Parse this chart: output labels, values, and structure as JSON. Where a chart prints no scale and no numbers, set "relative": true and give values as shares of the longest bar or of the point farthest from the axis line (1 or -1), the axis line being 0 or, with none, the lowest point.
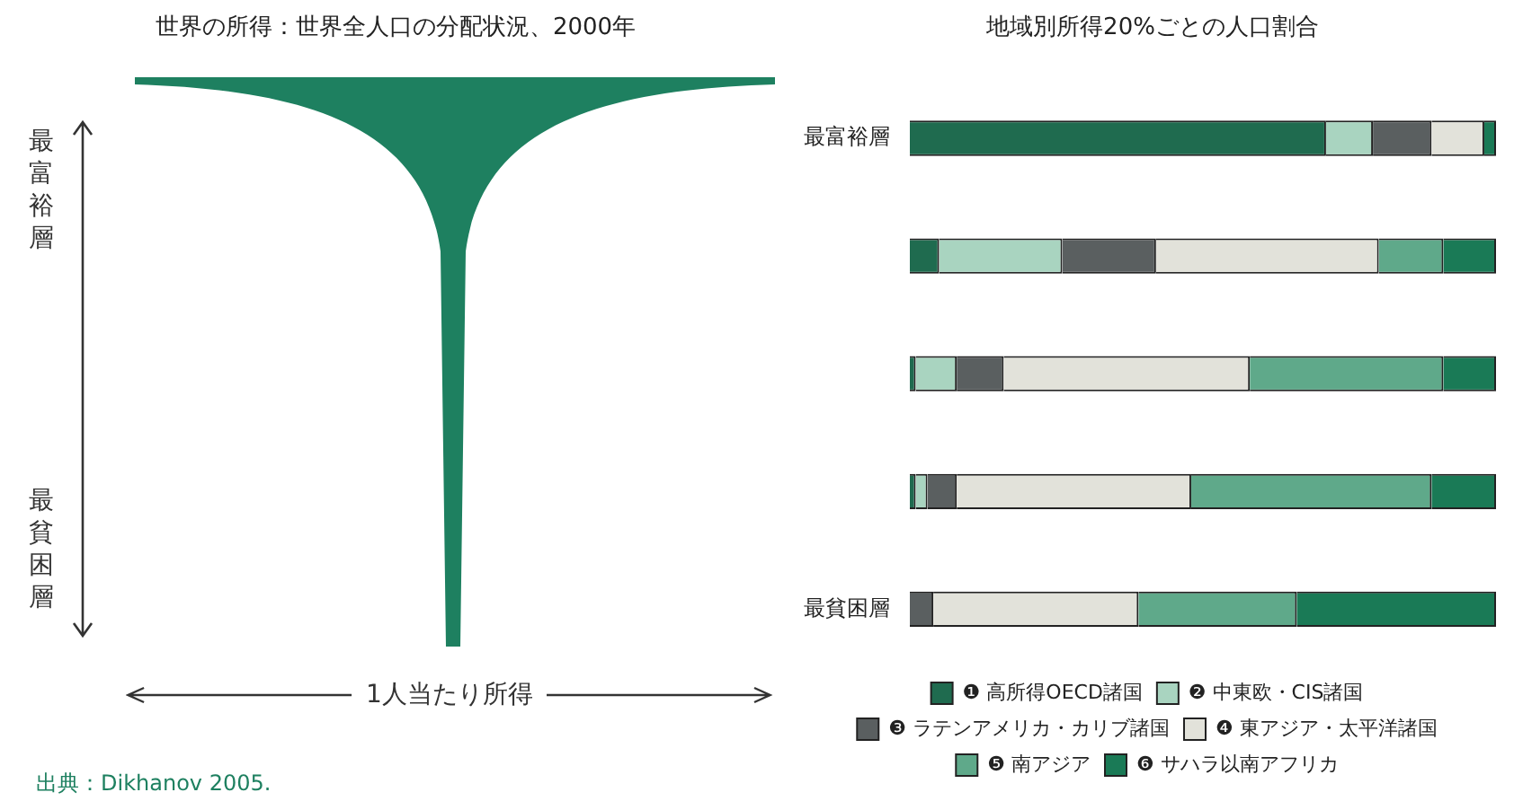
{
  "chart_data": [
    {
      "type": "other",
      "title": "世界の所得：世界全人口の分配状況、2000年",
      "xlabel": "1人当たり所得",
      "annotations": [
        "最富裕層",
        "最貧困層",
        "出典：Dikhanov 2005."
      ]
    },
    {
      "type": "bar",
      "orientation": "horizontal",
      "stacked": true,
      "relative": true,
      "title": "地域別所得20%ごとの人口割合",
      "legend": "bottom",
      "categories": [
        "最富裕層",
        null,
        null,
        null,
        "最貧困層"
      ],
      "series": [
        {
          "name": "❶ 高所得OECD諸国",
          "color": "#1f6b4f",
          "values": [
            0.71,
            0.05,
            0.01,
            0.01,
            0.0
          ]
        },
        {
          "name": "❷ 中東欧・CIS諸国",
          "color": "#a9d4c0",
          "values": [
            0.08,
            0.21,
            0.07,
            0.02,
            0.0
          ]
        },
        {
          "name": "❸ ラテンアメリカ・カリブ諸国",
          "color": "#5a5f60",
          "values": [
            0.1,
            0.16,
            0.08,
            0.05,
            0.04
          ]
        },
        {
          "name": "❹ 東アジア・太平洋諸国",
          "color": "#e2e2da",
          "values": [
            0.09,
            0.38,
            0.42,
            0.4,
            0.35
          ]
        },
        {
          "name": "❺ 南アジア",
          "color": "#5fa98a",
          "values": [
            0.0,
            0.11,
            0.33,
            0.41,
            0.27
          ]
        },
        {
          "name": "❻ サハラ以南アフリカ",
          "color": "#1a7a56",
          "values": [
            0.02,
            0.09,
            0.09,
            0.11,
            0.34
          ]
        }
      ]
    }
  ]
}
